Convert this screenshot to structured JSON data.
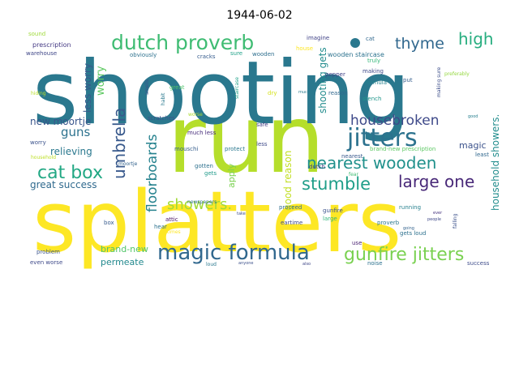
{
  "figure": {
    "title": "1944-06-02"
  },
  "words": [
    {
      "text": "splatters",
      "color": "#fde725"
    },
    {
      "text": "run",
      "color": "#b5de2b"
    },
    {
      "text": "shooting",
      "color": "#2a788e"
    },
    {
      "text": "dutch proverb",
      "color": "#3fbc73"
    },
    {
      "text": "magic formula",
      "color": "#31688e"
    },
    {
      "text": "jitters",
      "color": "#2c728e"
    },
    {
      "text": "gunfire jitters",
      "color": "#7ad151"
    },
    {
      "text": "cat box",
      "color": "#22a884"
    },
    {
      "text": "nearest wooden",
      "color": "#21918c"
    },
    {
      "text": "stumble",
      "color": "#1f9e89"
    },
    {
      "text": "large one",
      "color": "#482878"
    },
    {
      "text": "umbrella",
      "color": "#38598c"
    },
    {
      "text": "housebroken",
      "color": "#3e4989"
    },
    {
      "text": "thyme",
      "color": "#31688e"
    },
    {
      "text": "high",
      "color": "#28ae80"
    },
    {
      "text": "floorboards",
      "color": "#26828e"
    },
    {
      "text": "showers.",
      "color": "#a2da37"
    },
    {
      "text": "guns",
      "color": "#2c728e"
    },
    {
      "text": "worry",
      "color": "#5ec962"
    },
    {
      "text": "less worry",
      "color": "#38598c"
    },
    {
      "text": "new moortje",
      "color": "#39568c"
    },
    {
      "text": "relieving",
      "color": "#2a788e"
    },
    {
      "text": "great success",
      "color": "#306a8e"
    },
    {
      "text": "shooting gets",
      "color": "#228c8d"
    },
    {
      "text": "good reason",
      "color": "#c2df23"
    },
    {
      "text": "household showers.",
      "color": "#228d8d"
    },
    {
      "text": "magic",
      "color": "#3b528b"
    },
    {
      "text": "apply",
      "color": "#7ad151"
    },
    {
      "text": "brand-new",
      "color": "#52c569"
    },
    {
      "text": "permeate",
      "color": "#23898e"
    },
    {
      "text": "wooden staircase",
      "color": "#2c728e"
    },
    {
      "text": "imagine",
      "color": "#404387"
    },
    {
      "text": "cat",
      "color": "#31688e"
    },
    {
      "text": "sound",
      "color": "#9fda3a"
    },
    {
      "text": "prescription",
      "color": "#443983"
    },
    {
      "text": "warehouse",
      "color": "#3f4788"
    },
    {
      "text": "obviously",
      "color": "#2d718e"
    },
    {
      "text": "cracks",
      "color": "#365c8d"
    },
    {
      "text": "sure",
      "color": "#1fa188"
    },
    {
      "text": "wooden",
      "color": "#2e6f8e"
    },
    {
      "text": "house",
      "color": "#fde725"
    },
    {
      "text": "truly",
      "color": "#35b779"
    },
    {
      "text": "making",
      "color": "#3e4989"
    },
    {
      "text": "pepper",
      "color": "#414287"
    },
    {
      "text": "formula",
      "color": "#26828e"
    },
    {
      "text": "put",
      "color": "#355f8d"
    },
    {
      "text": "making sure",
      "color": "#3d4e8a"
    },
    {
      "text": "preferably",
      "color": "#95d840"
    },
    {
      "text": "hiding",
      "color": "#b8de29"
    },
    {
      "text": "smells",
      "color": "#3b528b"
    },
    {
      "text": "habit",
      "color": "#2a788e"
    },
    {
      "text": "great",
      "color": "#50c46a"
    },
    {
      "text": "staircase",
      "color": "#1fa088"
    },
    {
      "text": "dry",
      "color": "#d5e21a"
    },
    {
      "text": "much",
      "color": "#297b8e"
    },
    {
      "text": "reason",
      "color": "#31688e"
    },
    {
      "text": "stench",
      "color": "#1f968b"
    },
    {
      "text": "good",
      "color": "#277f8e"
    },
    {
      "text": "scratches",
      "color": "#3b528b"
    },
    {
      "text": "worse",
      "color": "#addc30"
    },
    {
      "text": "safe",
      "color": "#433e85"
    },
    {
      "text": "protect",
      "color": "#2a788e"
    },
    {
      "text": "much less",
      "color": "#472d7b"
    },
    {
      "text": "less",
      "color": "#3e4a89"
    },
    {
      "text": "brand-new prescription",
      "color": "#5cc863"
    },
    {
      "text": "least",
      "color": "#31688e"
    },
    {
      "text": "worry",
      "color": "#3b528b"
    },
    {
      "text": "household",
      "color": "#bddf26"
    },
    {
      "text": "mouschi",
      "color": "#355e8d"
    },
    {
      "text": "dutch",
      "color": "#443983"
    },
    {
      "text": "fear",
      "color": "#3fbc73"
    },
    {
      "text": "nearest",
      "color": "#38588c"
    },
    {
      "text": "gotten",
      "color": "#2d708e"
    },
    {
      "text": "gets",
      "color": "#1f9a8a"
    },
    {
      "text": "moortje",
      "color": "#33638d"
    },
    {
      "text": "newspapers",
      "color": "#2c738e"
    },
    {
      "text": "take",
      "color": "#3d4d8a"
    },
    {
      "text": "ever",
      "color": "#46337f"
    },
    {
      "text": "gunfire",
      "color": "#3b528b"
    },
    {
      "text": "running",
      "color": "#27808e"
    },
    {
      "text": "falling",
      "color": "#3b518b"
    },
    {
      "text": "large",
      "color": "#32b67a"
    },
    {
      "text": "people",
      "color": "#3f4889"
    },
    {
      "text": "hear",
      "color": "#2c718e"
    },
    {
      "text": "attic",
      "color": "#471063"
    },
    {
      "text": "proceed",
      "color": "#2f6c8e"
    },
    {
      "text": "eartime",
      "color": "#3e4989"
    },
    {
      "text": "proverb",
      "color": "#2a778e"
    },
    {
      "text": "going",
      "color": "#33638d"
    },
    {
      "text": "box",
      "color": "#375b8d"
    },
    {
      "text": "times",
      "color": "#fde725"
    },
    {
      "text": "problem",
      "color": "#3a548c"
    },
    {
      "text": "use",
      "color": "#481f70"
    },
    {
      "text": "gets loud",
      "color": "#2d718e"
    },
    {
      "text": "even worse",
      "color": "#3e4989"
    },
    {
      "text": "loud",
      "color": "#2a788e"
    },
    {
      "text": "anyone",
      "color": "#3c508b"
    },
    {
      "text": "also",
      "color": "#3f4788"
    },
    {
      "text": "noise",
      "color": "#2c718e"
    },
    {
      "text": "success",
      "color": "#3e4c8a"
    }
  ]
}
